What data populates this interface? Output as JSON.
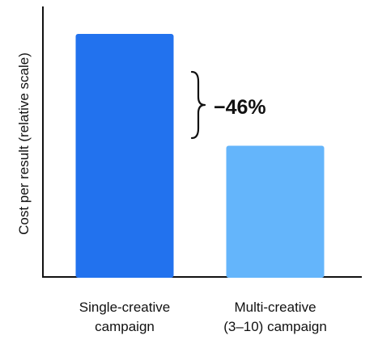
{
  "chart_data": {
    "type": "bar",
    "title": "",
    "xlabel": "",
    "ylabel": "Cost per result (relative scale)",
    "categories": [
      [
        "Single-creative",
        "campaign"
      ],
      [
        "Multi-creative",
        "(3–10) campaign"
      ]
    ],
    "values": [
      100,
      54
    ],
    "ylim": [
      0,
      103
    ],
    "grid": false,
    "legend": "none",
    "bar_colors": [
      "#2272ee",
      "#64b5fb"
    ],
    "annotation": {
      "text": "−46%",
      "between": [
        0,
        1
      ]
    }
  }
}
